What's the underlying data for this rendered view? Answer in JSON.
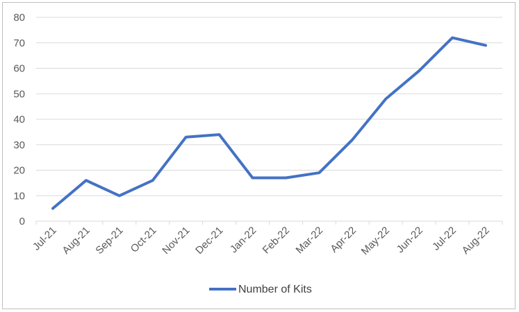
{
  "chart_data": {
    "type": "line",
    "categories": [
      "Jul-21",
      "Aug-21",
      "Sep-21",
      "Oct-21",
      "Nov-21",
      "Dec-21",
      "Jan-22",
      "Feb-22",
      "Mar-22",
      "Apr-22",
      "May-22",
      "Jun-22",
      "Jul-22",
      "Aug-22"
    ],
    "series": [
      {
        "name": "Number of Kits",
        "values": [
          5,
          16,
          10,
          16,
          33,
          34,
          17,
          17,
          19,
          32,
          48,
          59,
          72,
          69
        ],
        "color": "#4472c4"
      }
    ],
    "ylim": [
      0,
      80
    ],
    "yticks": [
      0,
      10,
      20,
      30,
      40,
      50,
      60,
      70,
      80
    ],
    "grid": true,
    "legend": "bottom"
  }
}
